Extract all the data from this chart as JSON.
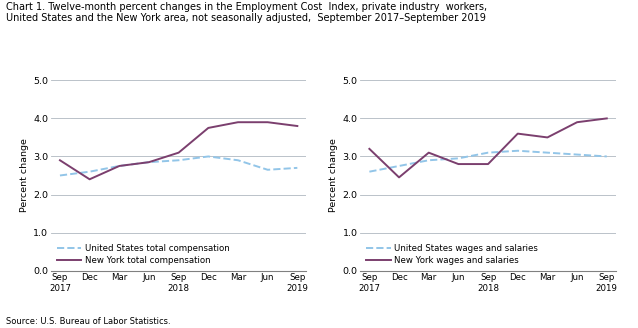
{
  "title_line1": "Chart 1. Twelve-month percent changes in the Employment Cost  Index, private industry  workers,",
  "title_line2": "United States and the New York area, not seasonally adjusted,  September 2017–September 2019",
  "source": "Source: U.S. Bureau of Labor Statistics.",
  "ylabel": "Percent change",
  "ylim": [
    0.0,
    5.0
  ],
  "yticks": [
    0.0,
    1.0,
    2.0,
    3.0,
    4.0,
    5.0
  ],
  "left_us_comp": [
    2.5,
    2.6,
    2.75,
    2.85,
    2.9,
    3.0,
    2.9,
    2.65,
    2.7
  ],
  "left_ny_comp": [
    2.9,
    2.4,
    2.75,
    2.85,
    3.1,
    3.75,
    3.9,
    3.9,
    3.8
  ],
  "right_us_wages": [
    2.6,
    2.75,
    2.9,
    2.95,
    3.1,
    3.15,
    3.1,
    3.05,
    3.0
  ],
  "right_ny_wages": [
    3.2,
    2.45,
    3.1,
    2.8,
    2.8,
    3.6,
    3.5,
    3.9,
    4.0
  ],
  "us_color": "#92C5E8",
  "ny_color": "#7B3F6E",
  "left_legend1": "United States total compensation",
  "left_legend2": "New York total compensation",
  "right_legend1": "United States wages and salaries",
  "right_legend2": "New York wages and salaries",
  "x_tick_labels": [
    "Sep\n2017",
    "Dec",
    "Mar",
    "Jun",
    "Sep\n2018",
    "Dec",
    "Mar",
    "Jun",
    "Sep\n2019"
  ]
}
